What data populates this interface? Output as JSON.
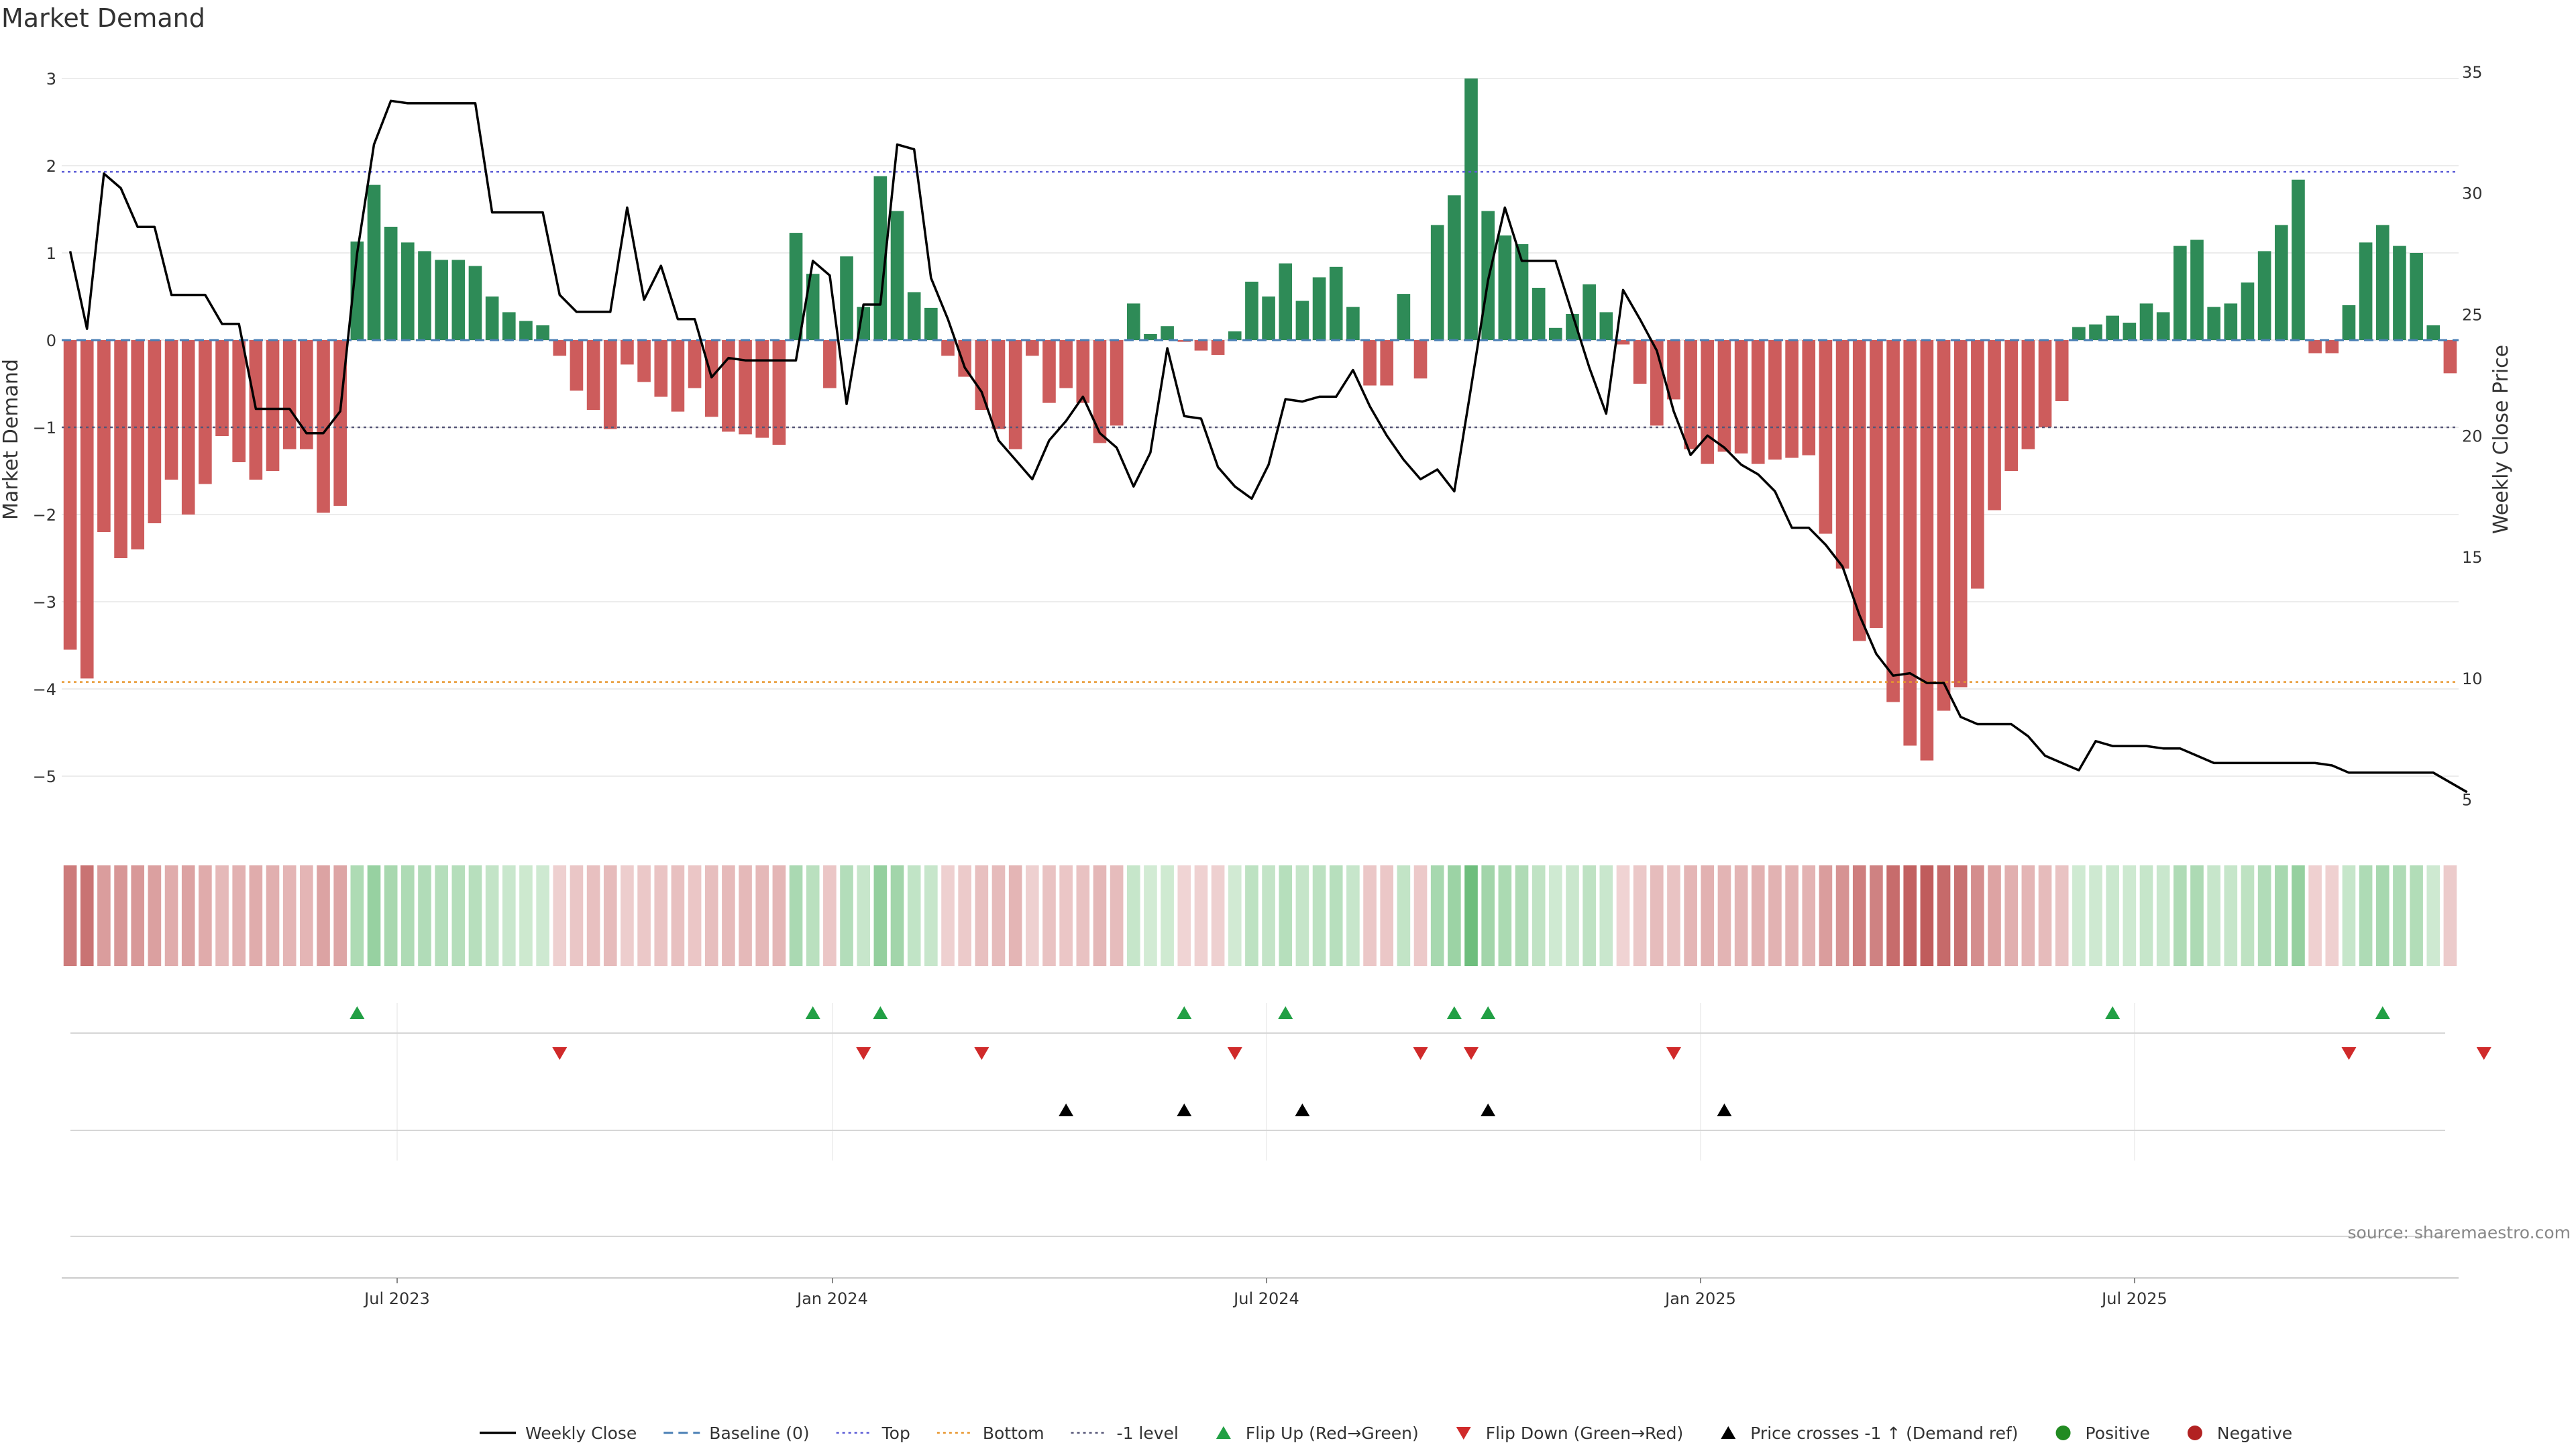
{
  "chart_data": {
    "type": "bar",
    "title": "Market Demand",
    "ylabel": "Market Demand",
    "y2label": "Weekly Close Price",
    "source": "source: sharemaestro.com",
    "ylim": [
      -5.6,
      3.3
    ],
    "y2lim": [
      3.8,
      35.8
    ],
    "yticks": [
      3,
      2,
      1,
      0,
      -1,
      -2,
      -3,
      -4,
      -5
    ],
    "yticklabels": [
      "3",
      "2",
      "1",
      "0",
      "−1",
      "−2",
      "−3",
      "−4",
      "−5"
    ],
    "y2ticks": [
      35,
      30,
      25,
      20,
      15,
      10,
      5
    ],
    "y2ticklabels": [
      "35",
      "30",
      "25",
      "20",
      "15",
      "10",
      "5"
    ],
    "xtick_labels": [
      "Jul 2023",
      "Jan 2024",
      "Jul 2024",
      "Jan 2025",
      "Jul 2025"
    ],
    "levels": {
      "top": 1.93,
      "bottom": -3.92,
      "minus_one": -1.0,
      "baseline": 0
    },
    "colors": {
      "positive": "#2e8b57",
      "negative": "#cd5c5c",
      "price": "#000000",
      "top": "#5b5bd6",
      "bottom": "#e8962e",
      "minus_one": "#555577",
      "baseline": "#4a7fb5",
      "flip_up": "#22a045",
      "flip_down": "#d02a2a",
      "cross": "#000000"
    },
    "demand": [
      -3.55,
      -3.88,
      -2.2,
      -2.5,
      -2.4,
      -2.1,
      -1.6,
      -2.0,
      -1.65,
      -1.1,
      -1.4,
      -1.6,
      -1.5,
      -1.25,
      -1.25,
      -1.98,
      -1.9,
      1.13,
      1.78,
      1.3,
      1.12,
      1.02,
      0.92,
      0.92,
      0.85,
      0.5,
      0.32,
      0.22,
      0.17,
      -0.18,
      -0.58,
      -0.8,
      -1.02,
      -0.28,
      -0.48,
      -0.65,
      -0.82,
      -0.55,
      -0.88,
      -1.05,
      -1.08,
      -1.12,
      -1.2,
      1.23,
      0.76,
      -0.55,
      0.96,
      0.38,
      1.88,
      1.48,
      0.55,
      0.37,
      -0.18,
      -0.42,
      -0.8,
      -1.02,
      -1.25,
      -0.18,
      -0.72,
      -0.55,
      -0.72,
      -1.18,
      -0.98,
      0.42,
      0.07,
      0.16,
      -0.02,
      -0.12,
      -0.17,
      0.1,
      0.67,
      0.5,
      0.88,
      0.45,
      0.72,
      0.84,
      0.38,
      -0.52,
      -0.52,
      0.53,
      -0.44,
      1.32,
      1.66,
      3.0,
      1.48,
      1.2,
      1.1,
      0.6,
      0.14,
      0.3,
      0.64,
      0.32,
      -0.05,
      -0.5,
      -0.98,
      -0.68,
      -1.25,
      -1.42,
      -1.28,
      -1.3,
      -1.42,
      -1.37,
      -1.35,
      -1.32,
      -2.22,
      -2.62,
      -3.45,
      -3.3,
      -4.15,
      -4.65,
      -4.82,
      -4.25,
      -3.98,
      -2.85,
      -1.95,
      -1.5,
      -1.25,
      -1.0,
      -0.7,
      0.15,
      0.18,
      0.28,
      0.2,
      0.42,
      0.32,
      1.08,
      1.15,
      0.38,
      0.42,
      0.66,
      1.02,
      1.32,
      1.84,
      -0.15,
      -0.15,
      0.4,
      1.12,
      1.32,
      1.08,
      1.0,
      0.17,
      -0.38
    ],
    "price": [
      27.6,
      24.4,
      30.8,
      30.2,
      28.6,
      28.6,
      25.8,
      25.8,
      25.8,
      24.6,
      24.6,
      21.1,
      21.1,
      21.1,
      20.1,
      20.1,
      21.0,
      27.5,
      32.0,
      33.8,
      33.7,
      33.7,
      33.7,
      33.7,
      33.7,
      29.2,
      29.2,
      29.2,
      29.2,
      25.8,
      25.1,
      25.1,
      25.1,
      29.4,
      25.6,
      27.0,
      24.8,
      24.8,
      22.4,
      23.2,
      23.1,
      23.1,
      23.1,
      23.1,
      27.2,
      26.6,
      21.3,
      25.4,
      25.4,
      32.0,
      31.8,
      26.5,
      24.8,
      22.8,
      21.8,
      19.8,
      19.0,
      18.2,
      19.8,
      20.6,
      21.6,
      20.1,
      19.5,
      17.9,
      19.3,
      23.6,
      20.8,
      20.7,
      18.7,
      17.9,
      17.4,
      18.8,
      21.5,
      21.4,
      21.6,
      21.6,
      22.7,
      21.2,
      20.0,
      19.0,
      18.2,
      18.6,
      17.7,
      22.0,
      26.4,
      29.4,
      27.2,
      27.2,
      27.2,
      25.0,
      22.8,
      20.9,
      26.0,
      24.8,
      23.5,
      21.0,
      19.2,
      20.0,
      19.5,
      18.8,
      18.4,
      17.7,
      16.2,
      16.2,
      15.5,
      14.6,
      12.6,
      11.0,
      10.1,
      10.2,
      9.8,
      9.8,
      8.4,
      8.1,
      8.1,
      8.1,
      7.6,
      6.8,
      6.5,
      6.2,
      7.4,
      7.2,
      7.2,
      7.2,
      7.1,
      7.1,
      6.8,
      6.5,
      6.5,
      6.5,
      6.5,
      6.5,
      6.5,
      6.5,
      6.4,
      6.1,
      6.1,
      6.1,
      6.1,
      6.1,
      6.1,
      5.7,
      5.3
    ],
    "flip_up": [
      17,
      44,
      48,
      66,
      72,
      82,
      84,
      121,
      137
    ],
    "flip_down": [
      29,
      47,
      54,
      69,
      80,
      83,
      95,
      135,
      143
    ],
    "crosses": [
      59,
      66,
      73,
      84,
      98
    ],
    "legend": [
      {
        "label": "Weekly Close",
        "kind": "line-solid"
      },
      {
        "label": "Baseline (0)",
        "kind": "line-dash"
      },
      {
        "label": "Top",
        "kind": "line-dot-top"
      },
      {
        "label": "Bottom",
        "kind": "line-dot-bottom"
      },
      {
        "label": "-1 level",
        "kind": "line-dot-m1"
      },
      {
        "label": "Flip Up (Red→Green)",
        "kind": "tri-up-green"
      },
      {
        "label": "Flip Down (Green→Red)",
        "kind": "tri-down-red"
      },
      {
        "label": "Price crosses -1 ↑ (Demand ref)",
        "kind": "tri-up-black"
      },
      {
        "label": "Positive",
        "kind": "dot-green"
      },
      {
        "label": "Negative",
        "kind": "dot-red"
      }
    ]
  }
}
